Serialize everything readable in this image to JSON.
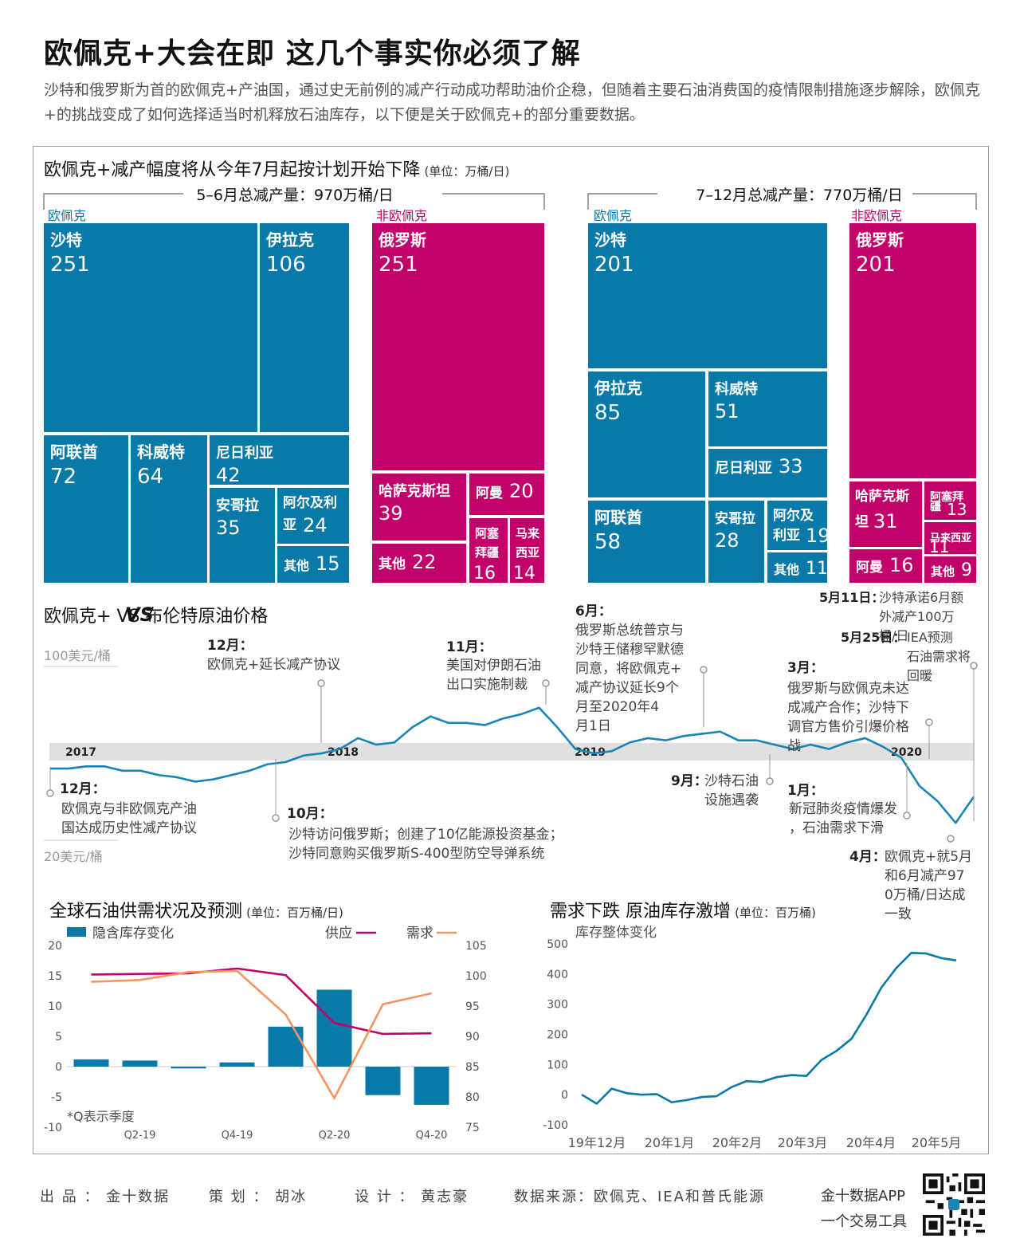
{
  "header": {
    "title": "欧佩克+大会在即 这几个事实你必须了解",
    "subtitle": "沙特和俄罗斯为首的欧佩克+产油国，通过史无前例的减产行动成功帮助油价企稳，但随着主要石油消费国的疫情限制措施逐步解除，欧佩克+的挑战变成了如何选择适当时机释放石油库存，以下便是关于欧佩克+的部分重要数据。"
  },
  "section1": {
    "title": "欧佩克+减产幅度将从今年7月起按计划开始下降",
    "unit": "(单位：万桶/日)",
    "left_total": "5–6月总减产量：970万桶/日",
    "right_total": "7–12月总减产量：770万桶/日",
    "opec_label": "欧佩克",
    "nonopec_label": "非欧佩克"
  },
  "colors": {
    "opec": "#0979a8",
    "nonopec": "#c2006a",
    "demand": "#f3965f",
    "supply": "#c2006a",
    "inventory": "#0979a8",
    "brent": "#1a84b8"
  },
  "chart_data": [
    {
      "type": "treemap",
      "title": "5–6月总减产量：970万桶/日",
      "groups": [
        {
          "name": "欧佩克",
          "items": [
            {
              "name": "沙特",
              "value": 251
            },
            {
              "name": "伊拉克",
              "value": 106
            },
            {
              "name": "阿联酋",
              "value": 72
            },
            {
              "name": "科威特",
              "value": 64
            },
            {
              "name": "尼日利亚",
              "value": 42
            },
            {
              "name": "安哥拉",
              "value": 35
            },
            {
              "name": "阿尔及利亚",
              "value": 24
            },
            {
              "name": "其他",
              "value": 15
            }
          ]
        },
        {
          "name": "非欧佩克",
          "items": [
            {
              "name": "俄罗斯",
              "value": 251
            },
            {
              "name": "哈萨克斯坦",
              "value": 39
            },
            {
              "name": "阿曼",
              "value": 20
            },
            {
              "name": "其他",
              "value": 22
            },
            {
              "name": "阿塞拜疆",
              "value": 16
            },
            {
              "name": "马来西亚",
              "value": 14
            }
          ]
        }
      ]
    },
    {
      "type": "treemap",
      "title": "7–12月总减产量：770万桶/日",
      "groups": [
        {
          "name": "欧佩克",
          "items": [
            {
              "name": "沙特",
              "value": 201
            },
            {
              "name": "伊拉克",
              "value": 85
            },
            {
              "name": "科威特",
              "value": 51
            },
            {
              "name": "尼日利亚",
              "value": 33
            },
            {
              "name": "阿联酋",
              "value": 58
            },
            {
              "name": "安哥拉",
              "value": 28
            },
            {
              "name": "阿尔及利亚",
              "value": 19
            },
            {
              "name": "其他",
              "value": 11
            }
          ]
        },
        {
          "name": "非欧佩克",
          "items": [
            {
              "name": "俄罗斯",
              "value": 201
            },
            {
              "name": "哈萨克斯坦",
              "value": 31
            },
            {
              "name": "阿塞拜疆",
              "value": 13
            },
            {
              "name": "马来西亚",
              "value": 11
            },
            {
              "name": "阿曼",
              "value": 16
            },
            {
              "name": "其他",
              "value": 9
            }
          ]
        }
      ]
    },
    {
      "type": "line",
      "title": "欧佩克+ VS 布伦特原油价格",
      "ylabels": [
        "100美元/桶",
        "20美元/桶"
      ],
      "year_labels": [
        "2017",
        "2018",
        "2019",
        "2020"
      ],
      "y": [
        53,
        53,
        54,
        54,
        52,
        52,
        50,
        49,
        47,
        48,
        50,
        52,
        55,
        56,
        59,
        60,
        62,
        67,
        64,
        65,
        72,
        77,
        74,
        74,
        73,
        76,
        78,
        81,
        72,
        62,
        60,
        61,
        65,
        67,
        66,
        68,
        69,
        70,
        66,
        66,
        64,
        62,
        64,
        62,
        65,
        67,
        63,
        58,
        45,
        38,
        28,
        40
      ],
      "annotations": [
        {
          "date": "12月：",
          "text": "欧佩克与非欧佩克产油国达成历史性减产协议"
        },
        {
          "date": "12月：",
          "text": "欧佩克+延长减产协议"
        },
        {
          "date": "10月：",
          "text": "沙特访问俄罗斯；创建了10亿能源投资基金；沙特同意购买俄罗斯S-400型防空导弹系统"
        },
        {
          "date": "11月：",
          "text": "美国对伊朗石油出口实施制裁"
        },
        {
          "date": "6月：",
          "text": "俄罗斯总统普京与沙特王储穆罕默德同意，将欧佩克+减产协议延长9个月至2020年4月1日"
        },
        {
          "date": "9月：",
          "text": "沙特石油设施遇袭"
        },
        {
          "date": "3月：",
          "text": "俄罗斯与欧佩克未达成减产合作；沙特下调官方售价引爆价格战"
        },
        {
          "date": "1月：",
          "text": "新冠肺炎疫情爆发，石油需求下滑"
        },
        {
          "date": "5月11日：",
          "text": "沙特承诺6月额外减产100万桶/日"
        },
        {
          "date": "5月25日：",
          "text": "IEA预测石油需求将回暖"
        },
        {
          "date": "4月：",
          "text": "欧佩克+就5月和6月减产970万桶/日达成一致"
        }
      ]
    },
    {
      "type": "bar",
      "title": "全球石油供需状况及预测",
      "unit": "(单位：百万桶/日)",
      "categories": [
        "Q1-19",
        "Q2-19",
        "Q3-19",
        "Q4-19",
        "Q1-20",
        "Q2-20",
        "Q3-20",
        "Q4-20"
      ],
      "shown_categories": [
        "Q2-19",
        "Q4-19",
        "Q2-20",
        "Q4-20"
      ],
      "series": [
        {
          "name": "隐含库存变化",
          "type": "bar",
          "axis": "left",
          "values": [
            1.2,
            1.0,
            -0.3,
            0.7,
            6.6,
            12.7,
            -4.7,
            -6.3
          ]
        },
        {
          "name": "供应",
          "type": "line",
          "axis": "right",
          "values": [
            100.2,
            100.3,
            100.4,
            101.2,
            100.1,
            92.2,
            90.4,
            90.5
          ]
        },
        {
          "name": "需求",
          "type": "line",
          "axis": "right",
          "values": [
            99.0,
            99.3,
            100.6,
            100.8,
            93.6,
            79.8,
            95.3,
            97.1
          ]
        }
      ],
      "ylim_left": [
        -10,
        20
      ],
      "yticks_left": [
        "20",
        "15",
        "10",
        "5",
        "0",
        "-5",
        "-10"
      ],
      "ylim_right": [
        75,
        105
      ],
      "yticks_right": [
        "105",
        "100",
        "95",
        "90",
        "85",
        "80",
        "75"
      ],
      "note": "*Q表示季度"
    },
    {
      "type": "line",
      "title": "需求下跌 原油库存激增",
      "unit": "(单位：百万桶)",
      "ylabel": "库存整体变化",
      "x_labels": [
        "19年12月",
        "20年1月",
        "20年2月",
        "20年3月",
        "20年4月",
        "20年5月"
      ],
      "y": [
        0,
        -30,
        20,
        5,
        0,
        2,
        -25,
        -18,
        -8,
        -5,
        25,
        45,
        42,
        58,
        65,
        62,
        115,
        145,
        185,
        265,
        355,
        420,
        470,
        468,
        453,
        445
      ],
      "ylim": [
        -100,
        500
      ],
      "yticks": [
        "500",
        "400",
        "300",
        "200",
        "100",
        "0",
        "-100"
      ]
    }
  ],
  "footer": {
    "producer": "出 品 ： 金十数据",
    "planner": "策 划 ： 胡冰",
    "designer": "设 计 ： 黄志豪",
    "source": "数据来源：欧佩克、IEA和普氏能源",
    "app": "金十数据APP",
    "slogan": "一个交易工具"
  }
}
